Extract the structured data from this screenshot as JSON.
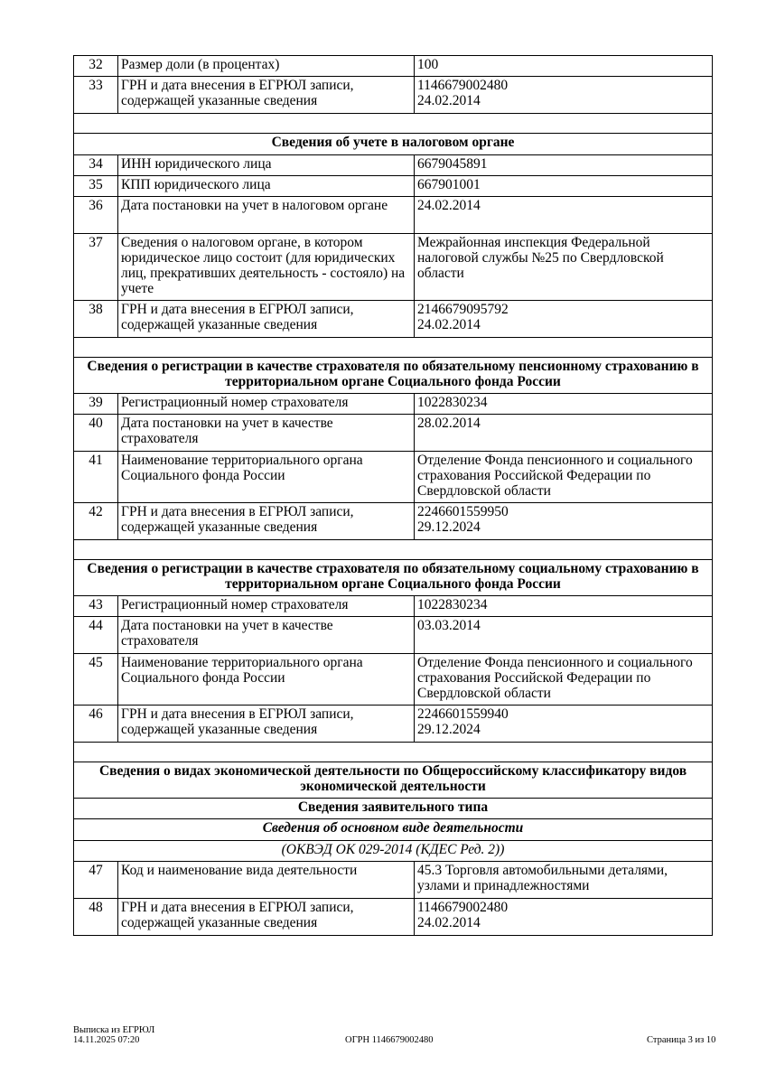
{
  "rows_a": [
    {
      "n": "32",
      "label": "Размер доли (в процентах)",
      "value": "100"
    },
    {
      "n": "33",
      "label": "ГРН и дата внесения в ЕГРЮЛ записи, содержащей указанные сведения",
      "value": "1146679002480\n24.02.2014"
    }
  ],
  "section_tax": {
    "title": "Сведения об учете в налоговом органе",
    "rows": [
      {
        "n": "34",
        "label": "ИНН юридического лица",
        "value": "6679045891"
      },
      {
        "n": "35",
        "label": "КПП юридического лица",
        "value": "667901001"
      },
      {
        "n": "36",
        "label": "Дата постановки на учет в налоговом органе",
        "value": "24.02.2014"
      },
      {
        "n": "37",
        "label": "Сведения о налоговом органе, в котором юридическое лицо состоит (для юридических лиц, прекративших деятельность - состояло) на учете",
        "value": "Межрайонная инспекция Федеральной налоговой службы №25 по Свердловской области"
      },
      {
        "n": "38",
        "label": "ГРН и дата внесения в ЕГРЮЛ записи, содержащей указанные сведения",
        "value": "2146679095792\n24.02.2014"
      }
    ]
  },
  "section_pension": {
    "title": "Сведения о регистрации в качестве страхователя по обязательному пенсионному страхованию в территориальном органе Социального фонда России",
    "rows": [
      {
        "n": "39",
        "label": "Регистрационный номер страхователя",
        "value": "1022830234"
      },
      {
        "n": "40",
        "label": "Дата постановки на учет в качестве страхователя",
        "value": "28.02.2014"
      },
      {
        "n": "41",
        "label": "Наименование территориального органа Социального фонда России",
        "value": "Отделение Фонда пенсионного и социального страхования Российской Федерации по Свердловской области"
      },
      {
        "n": "42",
        "label": "ГРН и дата внесения в ЕГРЮЛ записи, содержащей указанные сведения",
        "value": "2246601559950\n29.12.2024"
      }
    ]
  },
  "section_social": {
    "title": "Сведения о регистрации в качестве страхователя по обязательному социальному страхованию в территориальном органе Социального фонда России",
    "rows": [
      {
        "n": "43",
        "label": "Регистрационный номер страхователя",
        "value": "1022830234"
      },
      {
        "n": "44",
        "label": "Дата постановки на учет в качестве страхователя",
        "value": "03.03.2014"
      },
      {
        "n": "45",
        "label": "Наименование территориального органа Социального фонда России",
        "value": "Отделение Фонда пенсионного и социального страхования Российской Федерации по Свердловской области"
      },
      {
        "n": "46",
        "label": "ГРН и дата внесения в ЕГРЮЛ записи, содержащей указанные сведения",
        "value": "2246601559940\n29.12.2024"
      }
    ]
  },
  "section_okved": {
    "title": "Сведения о видах экономической деятельности по Общероссийскому классификатору видов экономической деятельности",
    "subtitle": "Сведения заявительного типа",
    "main_activity": "Сведения об основном виде деятельности",
    "classifier": "(ОКВЭД ОК 029-2014 (КДЕС Ред. 2))",
    "rows": [
      {
        "n": "47",
        "label": "Код и наименование вида деятельности",
        "value": "45.3 Торговля автомобильными деталями, узлами и принадлежностями"
      },
      {
        "n": "48",
        "label": "ГРН и дата внесения в ЕГРЮЛ записи, содержащей указанные сведения",
        "value": "1146679002480\n24.02.2014"
      }
    ]
  },
  "footer": {
    "doc": "Выписка из ЕГРЮЛ",
    "datetime": "14.11.2025 07:20",
    "ogrn": "ОГРН 1146679002480",
    "page": "Страница 3 из 10"
  }
}
